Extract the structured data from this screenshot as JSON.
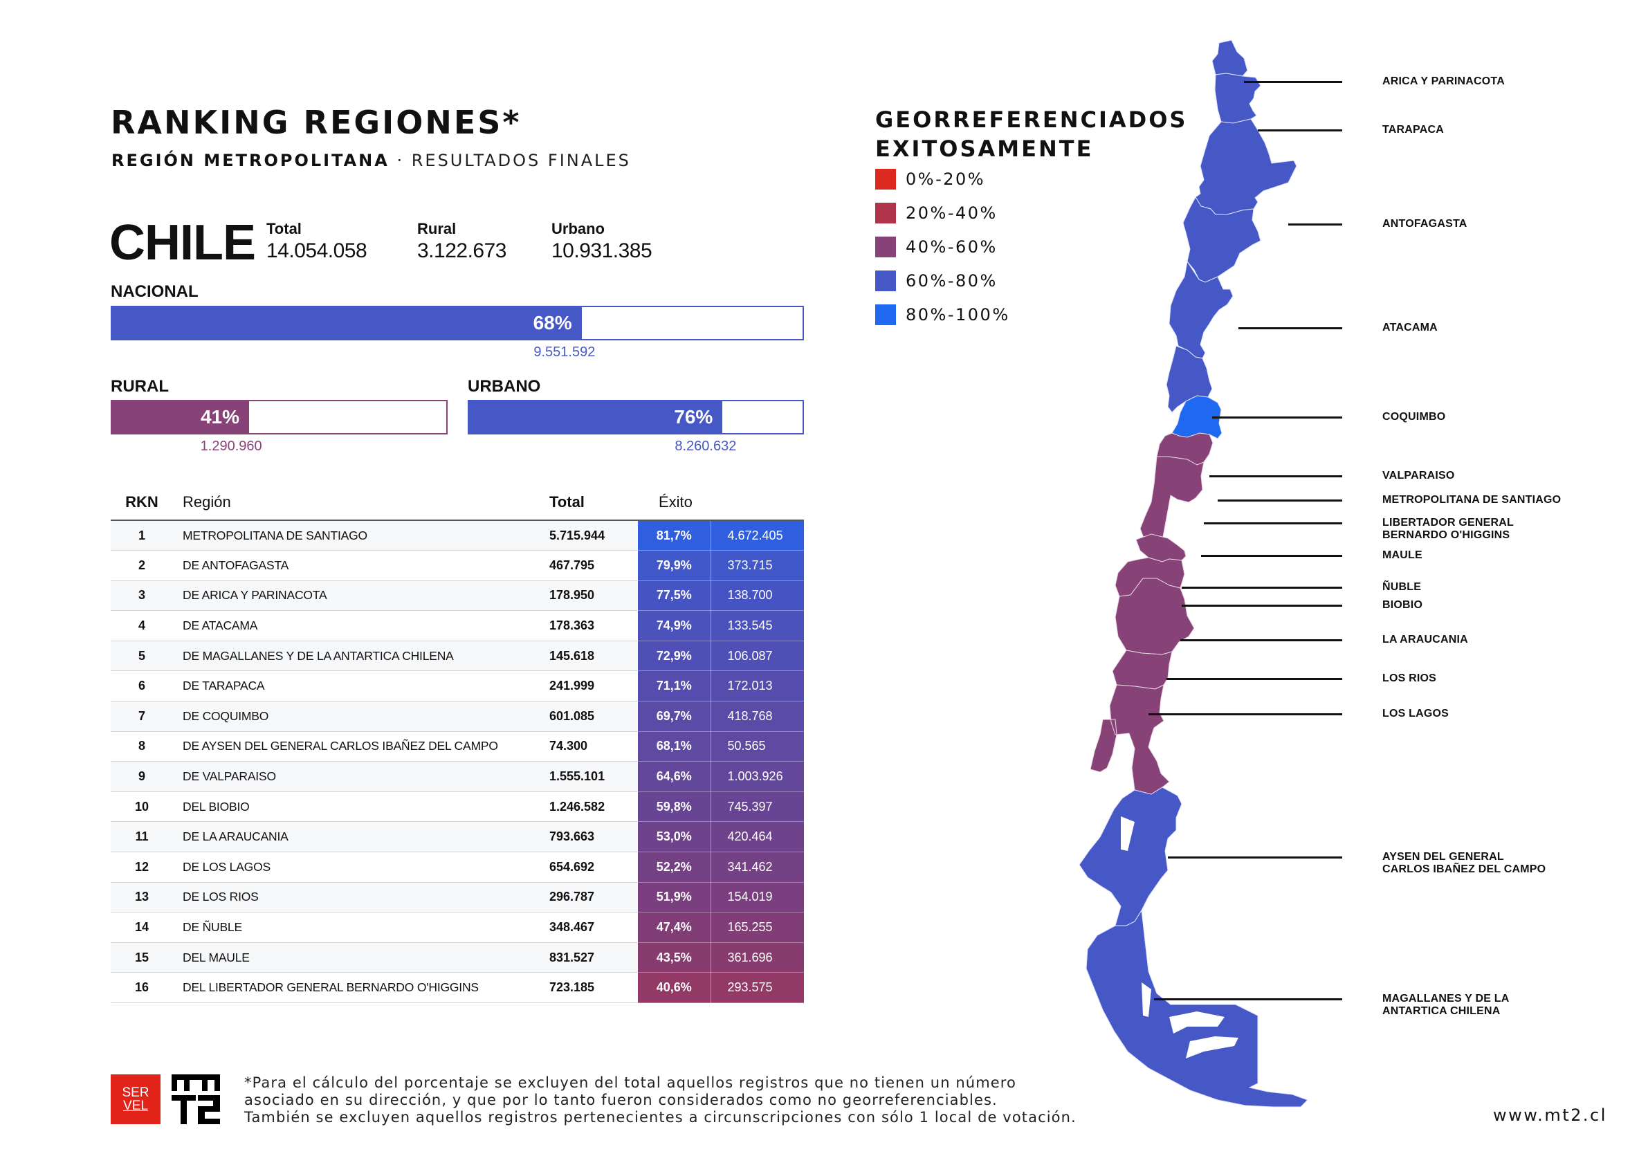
{
  "header": {
    "title": "RANKING REGIONES*",
    "subtitle_bold": "REGIÓN METROPOLITANA",
    "subtitle_sep": " · ",
    "subtitle_light": "RESULTADOS FINALES"
  },
  "country": {
    "name": "CHILE",
    "stats": [
      {
        "label": "Total",
        "value": "14.054.058"
      },
      {
        "label": "Rural",
        "value": "3.122.673"
      },
      {
        "label": "Urbano",
        "value": "10.931.385"
      }
    ]
  },
  "bars": {
    "nacional": {
      "label": "NACIONAL",
      "percent": 68,
      "percent_text": "68%",
      "count": "9.551.592",
      "color": "#4657c6"
    },
    "rural": {
      "label": "RURAL",
      "percent": 41,
      "percent_text": "41%",
      "count": "1.290.960",
      "color": "#874277"
    },
    "urbano": {
      "label": "URBANO",
      "percent": 76,
      "percent_text": "76%",
      "count": "8.260.632",
      "color": "#4657c6"
    }
  },
  "table": {
    "headers": {
      "rkn": "RKN",
      "region": "Región",
      "total": "Total",
      "exito": "Éxito"
    },
    "rows": [
      {
        "rank": "1",
        "region": "METROPOLITANA DE SANTIAGO",
        "total": "5.715.944",
        "pct": "81,7%",
        "count": "4.672.405",
        "color": "#2f5ede"
      },
      {
        "rank": "2",
        "region": "DE ANTOFAGASTA",
        "total": "467.795",
        "pct": "79,9%",
        "count": "373.715",
        "color": "#4158cb"
      },
      {
        "rank": "3",
        "region": "DE ARICA Y PARINACOTA",
        "total": "178.950",
        "pct": "77,5%",
        "count": "138.700",
        "color": "#4654c3"
      },
      {
        "rank": "4",
        "region": "DE ATACAMA",
        "total": "178.363",
        "pct": "74,9%",
        "count": "133.545",
        "color": "#4b52bc"
      },
      {
        "rank": "5",
        "region": "DE MAGALLANES Y DE LA ANTARTICA CHILENA",
        "total": "145.618",
        "pct": "72,9%",
        "count": "106.087",
        "color": "#504fb5"
      },
      {
        "rank": "6",
        "region": "DE TARAPACA",
        "total": "241.999",
        "pct": "71,1%",
        "count": "172.013",
        "color": "#554dae"
      },
      {
        "rank": "7",
        "region": "DE COQUIMBO",
        "total": "601.085",
        "pct": "69,7%",
        "count": "418.768",
        "color": "#5a4ba7"
      },
      {
        "rank": "8",
        "region": "DE AYSEN DEL GENERAL CARLOS IBAÑEZ DEL CAMPO",
        "total": "74.300",
        "pct": "68,1%",
        "count": "50.565",
        "color": "#5e4aa1"
      },
      {
        "rank": "9",
        "region": "DE VALPARAISO",
        "total": "1.555.101",
        "pct": "64,6%",
        "count": "1.003.926",
        "color": "#63479a"
      },
      {
        "rank": "10",
        "region": "DEL BIOBIO",
        "total": "1.246.582",
        "pct": "59,8%",
        "count": "745.397",
        "color": "#684594"
      },
      {
        "rank": "11",
        "region": "DE LA ARAUCANIA",
        "total": "793.663",
        "pct": "53,0%",
        "count": "420.464",
        "color": "#6e438c"
      },
      {
        "rank": "12",
        "region": "DE LOS LAGOS",
        "total": "654.692",
        "pct": "52,2%",
        "count": "341.462",
        "color": "#744185"
      },
      {
        "rank": "13",
        "region": "DE LOS RIOS",
        "total": "296.787",
        "pct": "51,9%",
        "count": "154.019",
        "color": "#7a3f7e"
      },
      {
        "rank": "14",
        "region": "DE ÑUBLE",
        "total": "348.467",
        "pct": "47,4%",
        "count": "165.255",
        "color": "#813d76"
      },
      {
        "rank": "15",
        "region": "DEL MAULE",
        "total": "831.527",
        "pct": "43,5%",
        "count": "361.696",
        "color": "#883b6e"
      },
      {
        "rank": "16",
        "region": "DEL LIBERTADOR GENERAL BERNARDO O'HIGGINS",
        "total": "723.185",
        "pct": "40,6%",
        "count": "293.575",
        "color": "#933966"
      }
    ]
  },
  "legend": {
    "title_line1": "GEORREFERENCIADOS",
    "title_line2": "EXITOSAMENTE",
    "items": [
      {
        "label": "0%-20%",
        "color": "#dd2a20"
      },
      {
        "label": "20%-40%",
        "color": "#b0354c"
      },
      {
        "label": "40%-60%",
        "color": "#874277"
      },
      {
        "label": "60%-80%",
        "color": "#4657c6"
      },
      {
        "label": "80%-100%",
        "color": "#1e69f0"
      }
    ]
  },
  "map": {
    "callouts": [
      {
        "label": "ARICA Y PARINACOTA"
      },
      {
        "label": "TARAPACA"
      },
      {
        "label": "ANTOFAGASTA"
      },
      {
        "label": "ATACAMA"
      },
      {
        "label": "COQUIMBO"
      },
      {
        "label": "VALPARAISO"
      },
      {
        "label": "METROPOLITANA DE SANTIAGO"
      },
      {
        "label": "LIBERTADOR GENERAL\nBERNARDO O'HIGGINS"
      },
      {
        "label": "MAULE"
      },
      {
        "label": "ÑUBLE"
      },
      {
        "label": "BIOBIO"
      },
      {
        "label": "LA ARAUCANIA"
      },
      {
        "label": "LOS RIOS"
      },
      {
        "label": "LOS LAGOS"
      },
      {
        "label": "AYSEN DEL GENERAL\nCARLOS IBAÑEZ DEL CAMPO"
      },
      {
        "label": "MAGALLANES Y DE LA\nANTARTICA CHILENA"
      }
    ]
  },
  "footer": {
    "servel_logo_line1": "SER",
    "servel_logo_line2": "VEL",
    "footnote_lines": [
      "*Para el cálculo del porcentaje se excluyen del total aquellos registros que no tienen un número",
      "asociado en su dirección, y que por lo tanto fueron considerados como no georreferenciables.",
      "También se excluyen aquellos registros pertenecientes a circunscripciones con sólo 1 local de votación."
    ],
    "url": "www.mt2.cl"
  }
}
